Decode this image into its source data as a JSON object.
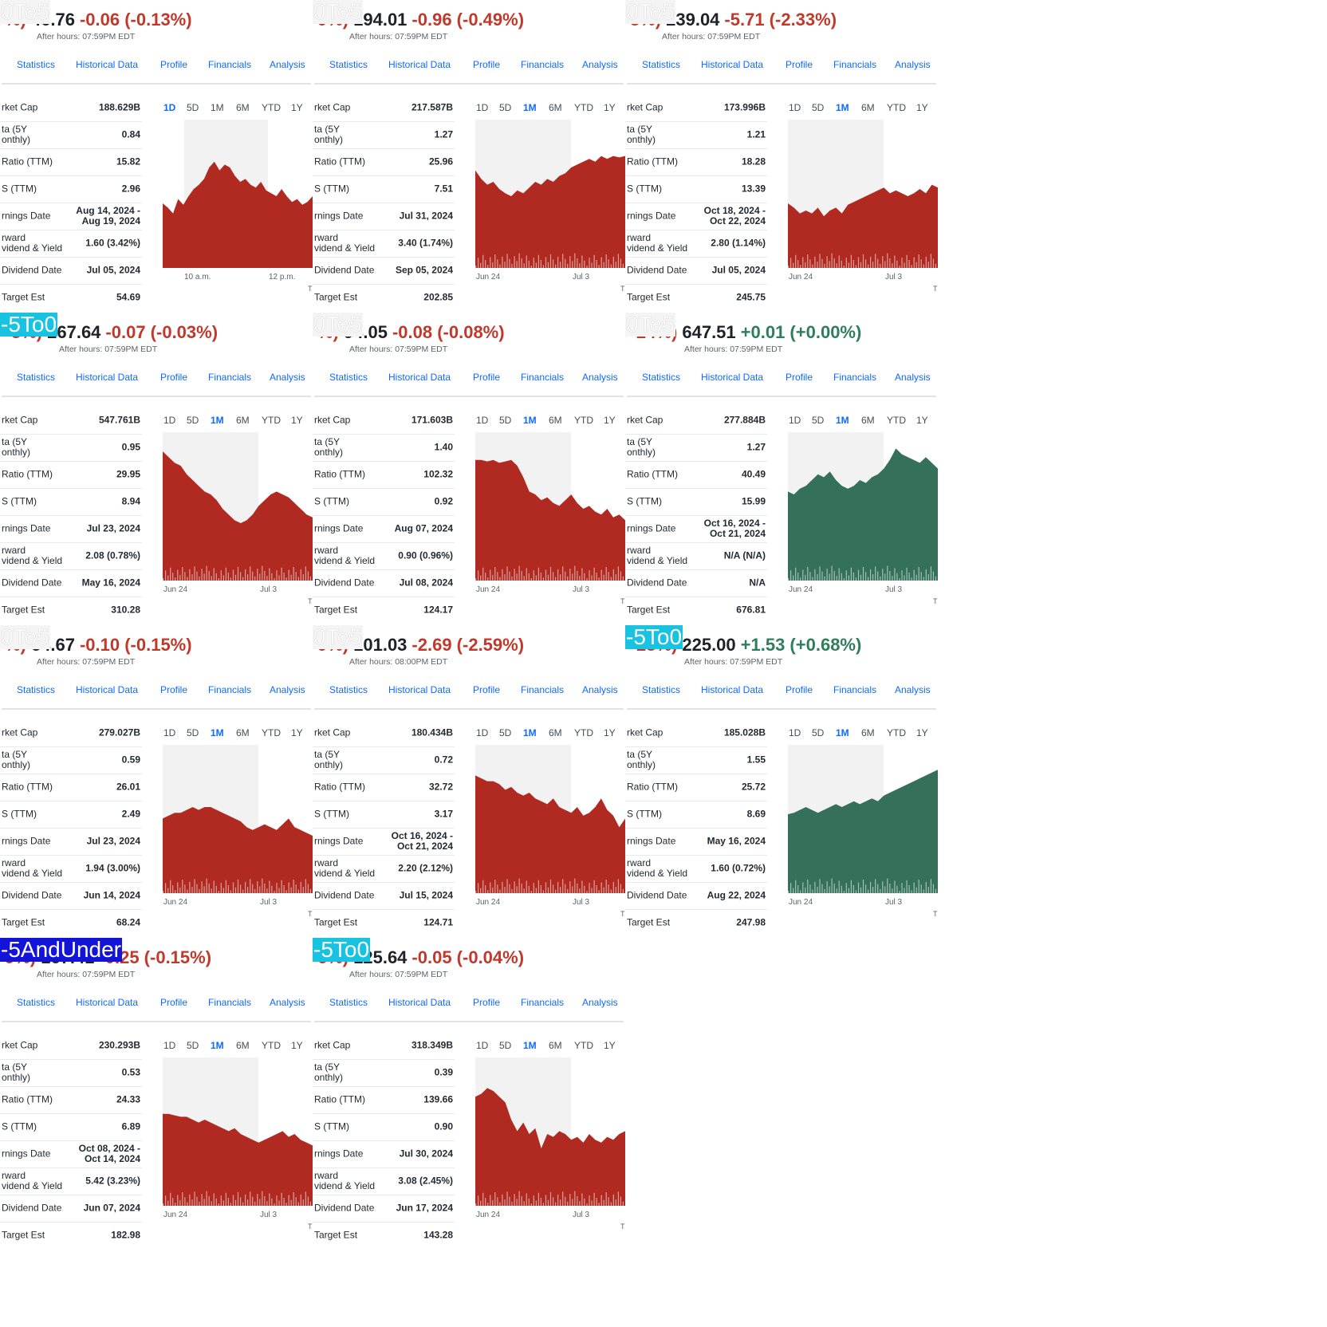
{
  "colors": {
    "down": "#b02a22",
    "up": "#34705a",
    "link": "#0f69ff",
    "gray_band": "#f2f2f2"
  },
  "icons": {
    "range_end_marker": "T"
  },
  "tabs": [
    "Statistics",
    "Historical Data",
    "Profile",
    "Financials",
    "Analysis"
  ],
  "ranges": [
    "1D",
    "5D",
    "1M",
    "6M",
    "YTD",
    "1Y"
  ],
  "stat_labels": [
    "rket Cap",
    "ta (5Y\nonthly)",
    "Ratio (TTM)",
    "S (TTM)",
    "rnings Date",
    "rward\nvidend & Yield",
    "Dividend Date",
    "Target Est"
  ],
  "cards": [
    {
      "tag": "0To5",
      "tag_style": "faint",
      "pct": "%)",
      "price": "46.76",
      "change": "-0.06 (-0.13%)",
      "dir": "down",
      "after_hours": "After hours: 07:59PM EDT",
      "stats": [
        "188.629B",
        "0.84",
        "15.82",
        "2.96",
        "Aug 14, 2024 -\nAug 19, 2024",
        "1.60 (3.42%)",
        "Jul 05, 2024",
        "54.69"
      ],
      "active_range": "1D",
      "x_labels": [
        "10 a.m.",
        "12 p.m."
      ],
      "series": [
        0.45,
        0.42,
        0.38,
        0.48,
        0.44,
        0.5,
        0.55,
        0.58,
        0.62,
        0.7,
        0.74,
        0.68,
        0.72,
        0.7,
        0.64,
        0.6,
        0.62,
        0.58,
        0.56,
        0.6,
        0.54,
        0.52,
        0.5,
        0.55,
        0.5,
        0.46,
        0.48,
        0.44,
        0.46,
        0.5
      ]
    },
    {
      "tag": "0To5",
      "tag_style": "faint",
      "pct": "9%)",
      "price": "194.01",
      "change": "-0.96 (-0.49%)",
      "dir": "down",
      "after_hours": "After hours: 07:59PM EDT",
      "stats": [
        "217.587B",
        "1.27",
        "25.96",
        "7.51",
        "Jul 31, 2024",
        "3.40 (1.74%)",
        "Sep 05, 2024",
        "202.85"
      ],
      "active_range": "1M",
      "x_labels": [
        "Jun 24",
        "Jul 3"
      ],
      "series": [
        0.68,
        0.62,
        0.58,
        0.6,
        0.55,
        0.52,
        0.5,
        0.54,
        0.52,
        0.56,
        0.6,
        0.58,
        0.62,
        0.6,
        0.64,
        0.66,
        0.7,
        0.72,
        0.74,
        0.76,
        0.74,
        0.78,
        0.76,
        0.78,
        0.77,
        0.78
      ]
    },
    {
      "tag": "0To5",
      "tag_style": "faint",
      "pct": "3%)",
      "price": "239.04",
      "change": "-5.71 (-2.33%)",
      "dir": "down",
      "after_hours": "After hours: 07:59PM EDT",
      "stats": [
        "173.996B",
        "1.21",
        "18.28",
        "13.39",
        "Oct 18, 2024 -\nOct 22, 2024",
        "2.80 (1.14%)",
        "Jul 05, 2024",
        "245.75"
      ],
      "active_range": "1M",
      "x_labels": [
        "Jun 24",
        "Jul 3"
      ],
      "series": [
        0.45,
        0.42,
        0.38,
        0.4,
        0.38,
        0.42,
        0.36,
        0.4,
        0.42,
        0.38,
        0.44,
        0.46,
        0.48,
        0.5,
        0.52,
        0.54,
        0.56,
        0.52,
        0.54,
        0.52,
        0.5,
        0.52,
        0.55,
        0.52,
        0.58,
        0.56
      ]
    },
    {
      "tag": "-5To0",
      "tag_style": "cyan",
      "pct": "3%)",
      "price": "267.64",
      "change": "-0.07 (-0.03%)",
      "dir": "down",
      "after_hours": "After hours: 07:59PM EDT",
      "stats": [
        "547.761B",
        "0.95",
        "29.95",
        "8.94",
        "Jul 23, 2024",
        "2.08 (0.78%)",
        "May 16, 2024",
        "310.28"
      ],
      "active_range": "1M",
      "x_labels": [
        "Jun 24",
        "Jul 3"
      ],
      "series": [
        0.9,
        0.86,
        0.82,
        0.8,
        0.74,
        0.7,
        0.66,
        0.62,
        0.6,
        0.56,
        0.5,
        0.46,
        0.42,
        0.4,
        0.42,
        0.46,
        0.52,
        0.56,
        0.6,
        0.62,
        0.6,
        0.58,
        0.54,
        0.5,
        0.46,
        0.44
      ]
    },
    {
      "tag": "0To5",
      "tag_style": "faint",
      "pct": "%)",
      "price": "94.05",
      "change": "-0.08 (-0.08%)",
      "dir": "down",
      "after_hours": "After hours: 07:59PM EDT",
      "stats": [
        "171.603B",
        "1.40",
        "102.32",
        "0.92",
        "Aug 07, 2024",
        "0.90 (0.96%)",
        "Jul 08, 2024",
        "124.17"
      ],
      "active_range": "1M",
      "x_labels": [
        "Jun 24",
        "Jul 3"
      ],
      "series": [
        0.84,
        0.84,
        0.83,
        0.84,
        0.82,
        0.83,
        0.84,
        0.8,
        0.72,
        0.62,
        0.6,
        0.56,
        0.58,
        0.54,
        0.52,
        0.56,
        0.6,
        0.54,
        0.5,
        0.52,
        0.48,
        0.46,
        0.5,
        0.44,
        0.46,
        0.42
      ]
    },
    {
      "tag": "0To5",
      "tag_style": "faint",
      "pct": "24%)",
      "price": "647.51",
      "change": "+0.01 (+0.00%)",
      "dir": "up",
      "after_hours": "After hours: 07:59PM EDT",
      "stats": [
        "277.884B",
        "1.27",
        "40.49",
        "15.99",
        "Oct 16, 2024 -\nOct 21, 2024",
        "N/A (N/A)",
        "N/A",
        "676.81"
      ],
      "active_range": "1M",
      "x_labels": [
        "Jun 24",
        "Jul 3"
      ],
      "series": [
        0.62,
        0.6,
        0.64,
        0.66,
        0.7,
        0.74,
        0.72,
        0.76,
        0.7,
        0.66,
        0.64,
        0.66,
        0.7,
        0.68,
        0.72,
        0.74,
        0.78,
        0.84,
        0.92,
        0.88,
        0.86,
        0.84,
        0.82,
        0.86,
        0.82,
        0.78
      ]
    },
    {
      "tag": "0To5",
      "tag_style": "faint",
      "pct": "%)",
      "price": "64.67",
      "change": "-0.10 (-0.15%)",
      "dir": "down",
      "after_hours": "After hours: 07:59PM EDT",
      "stats": [
        "279.027B",
        "0.59",
        "26.01",
        "2.49",
        "Jul 23, 2024",
        "1.94 (3.00%)",
        "Jun 14, 2024",
        "68.24"
      ],
      "active_range": "1M",
      "x_labels": [
        "Jun 24",
        "Jul 3"
      ],
      "series": [
        0.52,
        0.54,
        0.56,
        0.56,
        0.58,
        0.6,
        0.58,
        0.6,
        0.6,
        0.58,
        0.56,
        0.54,
        0.52,
        0.5,
        0.46,
        0.44,
        0.46,
        0.48,
        0.46,
        0.44,
        0.48,
        0.52,
        0.46,
        0.44,
        0.42,
        0.4
      ]
    },
    {
      "tag": "0To5",
      "tag_style": "faint",
      "pct": "9%)",
      "price": "101.03",
      "change": "-2.69 (-2.59%)",
      "dir": "down",
      "after_hours": "After hours: 08:00PM EDT",
      "stats": [
        "180.434B",
        "0.72",
        "32.72",
        "3.17",
        "Oct 16, 2024 -\nOct 21, 2024",
        "2.20 (2.12%)",
        "Jul 15, 2024",
        "124.71"
      ],
      "active_range": "1M",
      "x_labels": [
        "Jun 24",
        "Jul 3"
      ],
      "series": [
        0.82,
        0.8,
        0.78,
        0.78,
        0.76,
        0.72,
        0.74,
        0.7,
        0.68,
        0.7,
        0.66,
        0.64,
        0.62,
        0.66,
        0.6,
        0.58,
        0.56,
        0.6,
        0.54,
        0.56,
        0.6,
        0.66,
        0.58,
        0.54,
        0.46,
        0.52
      ]
    },
    {
      "tag": "-5To0",
      "tag_style": "cyan",
      "pct": "28%)",
      "price": "225.00",
      "change": "+1.53 (+0.68%)",
      "dir": "up",
      "after_hours": "After hours: 07:59PM EDT",
      "stats": [
        "185.028B",
        "1.55",
        "25.72",
        "8.69",
        "May 16, 2024",
        "1.60 (0.72%)",
        "Aug 22, 2024",
        "247.98"
      ],
      "active_range": "1M",
      "x_labels": [
        "Jun 24",
        "Jul 3"
      ],
      "series": [
        0.55,
        0.56,
        0.58,
        0.6,
        0.58,
        0.56,
        0.58,
        0.6,
        0.62,
        0.6,
        0.62,
        0.64,
        0.62,
        0.64,
        0.66,
        0.64,
        0.68,
        0.7,
        0.72,
        0.74,
        0.76,
        0.78,
        0.8,
        0.82,
        0.84,
        0.86
      ]
    },
    {
      "tag": "-5AndUnder",
      "tag_style": "blue",
      "pct": "9%)",
      "price": "167.41",
      "change": "-0.25 (-0.15%)",
      "dir": "down",
      "after_hours": "After hours: 07:59PM EDT",
      "stats": [
        "230.293B",
        "0.53",
        "24.33",
        "6.89",
        "Oct 08, 2024 -\nOct 14, 2024",
        "5.42 (3.23%)",
        "Jun 07, 2024",
        "182.98"
      ],
      "active_range": "1M",
      "x_labels": [
        "Jun 24",
        "Jul 3"
      ],
      "series": [
        0.64,
        0.64,
        0.63,
        0.62,
        0.62,
        0.6,
        0.58,
        0.6,
        0.58,
        0.56,
        0.54,
        0.52,
        0.54,
        0.5,
        0.48,
        0.46,
        0.44,
        0.46,
        0.48,
        0.5,
        0.52,
        0.48,
        0.5,
        0.46,
        0.44,
        0.42
      ]
    },
    {
      "tag": "-5To0",
      "tag_style": "cyan",
      "pct": "6%)",
      "price": "125.64",
      "change": "-0.05 (-0.04%)",
      "dir": "down",
      "after_hours": "After hours: 07:59PM EDT",
      "stats": [
        "318.349B",
        "0.39",
        "139.66",
        "0.90",
        "Jul 30, 2024",
        "3.08 (2.45%)",
        "Jun 17, 2024",
        "143.28"
      ],
      "active_range": "1M",
      "x_labels": [
        "Jun 24",
        "Jul 3"
      ],
      "series": [
        0.76,
        0.78,
        0.82,
        0.8,
        0.76,
        0.72,
        0.6,
        0.52,
        0.58,
        0.5,
        0.54,
        0.4,
        0.5,
        0.48,
        0.52,
        0.5,
        0.46,
        0.48,
        0.44,
        0.5,
        0.46,
        0.44,
        0.48,
        0.46,
        0.5,
        0.52
      ]
    }
  ]
}
